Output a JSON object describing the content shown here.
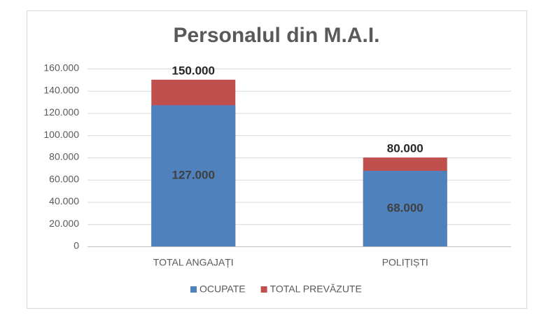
{
  "chart_data": {
    "type": "bar",
    "title": "Personalul din M.A.I.",
    "categories": [
      "TOTAL ANGAJAȚI",
      "POLIȚIȘTI"
    ],
    "series": [
      {
        "name": "OCUPATE",
        "color": "#4f81bd",
        "values": [
          127000,
          68000
        ],
        "value_labels": [
          "127.000",
          "68.000"
        ]
      },
      {
        "name": "TOTAL PREVĂZUTE",
        "color": "#c0504d",
        "values": [
          150000,
          80000
        ],
        "value_labels": [
          "150.000",
          "80.000"
        ]
      }
    ],
    "overlap": true,
    "ylim": [
      0,
      160000
    ],
    "yticks": [
      0,
      {
        "value": 20000,
        "label": "20.000"
      },
      {
        "value": 40000,
        "label": "40.000"
      },
      {
        "value": 60000,
        "label": "60.000"
      },
      {
        "value": 80000,
        "label": "80.000"
      },
      {
        "value": 100000,
        "label": "100.000"
      },
      {
        "value": 120000,
        "label": "120.000"
      },
      {
        "value": 140000,
        "label": "140.000"
      },
      {
        "value": 160000,
        "label": "160.000"
      }
    ],
    "grid": true,
    "legend": "bottom"
  }
}
